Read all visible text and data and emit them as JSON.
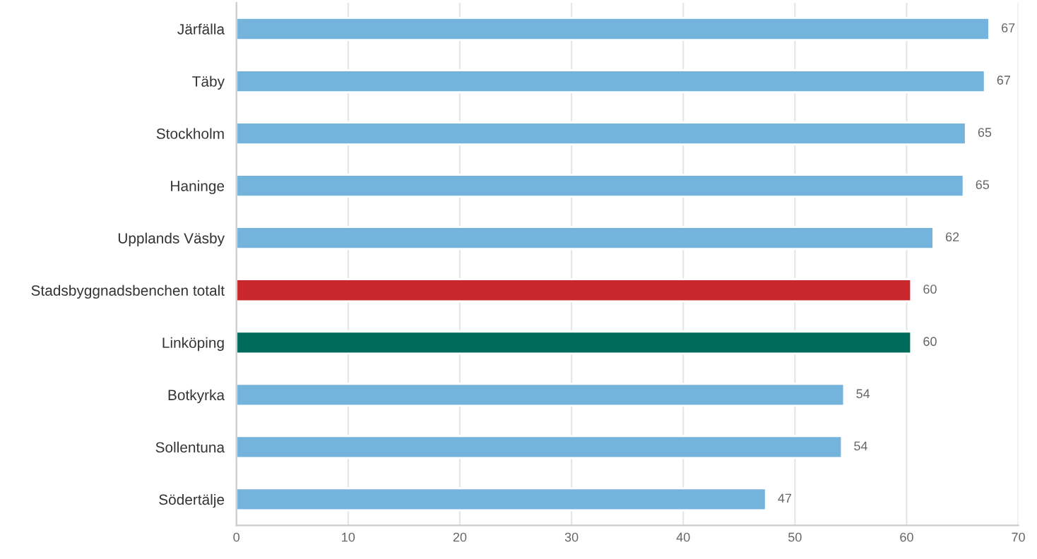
{
  "chart_data": {
    "type": "bar",
    "orientation": "horizontal",
    "categories": [
      "Järfälla",
      "Täby",
      "Stockholm",
      "Haninge",
      "Upplands Väsby",
      "Stadsbyggnadsbenchen totalt",
      "Linköping",
      "Botkyrka",
      "Sollentuna",
      "Södertälje"
    ],
    "values": [
      67.4,
      67.0,
      65.3,
      65.1,
      62.4,
      60.4,
      60.4,
      54.4,
      54.2,
      47.4
    ],
    "value_labels": [
      "67",
      "67",
      "65",
      "65",
      "62",
      "60",
      "60",
      "54",
      "54",
      "47"
    ],
    "colors": [
      "#74b4dc",
      "#74b4dc",
      "#74b4dc",
      "#74b4dc",
      "#74b4dc",
      "#c8282b",
      "#006a5b",
      "#74b4dc",
      "#74b4dc",
      "#74b4dc"
    ],
    "xlim": [
      0,
      70
    ],
    "xticks": [
      0,
      10,
      20,
      30,
      40,
      50,
      60,
      70
    ],
    "grid": "x",
    "legend": false
  }
}
